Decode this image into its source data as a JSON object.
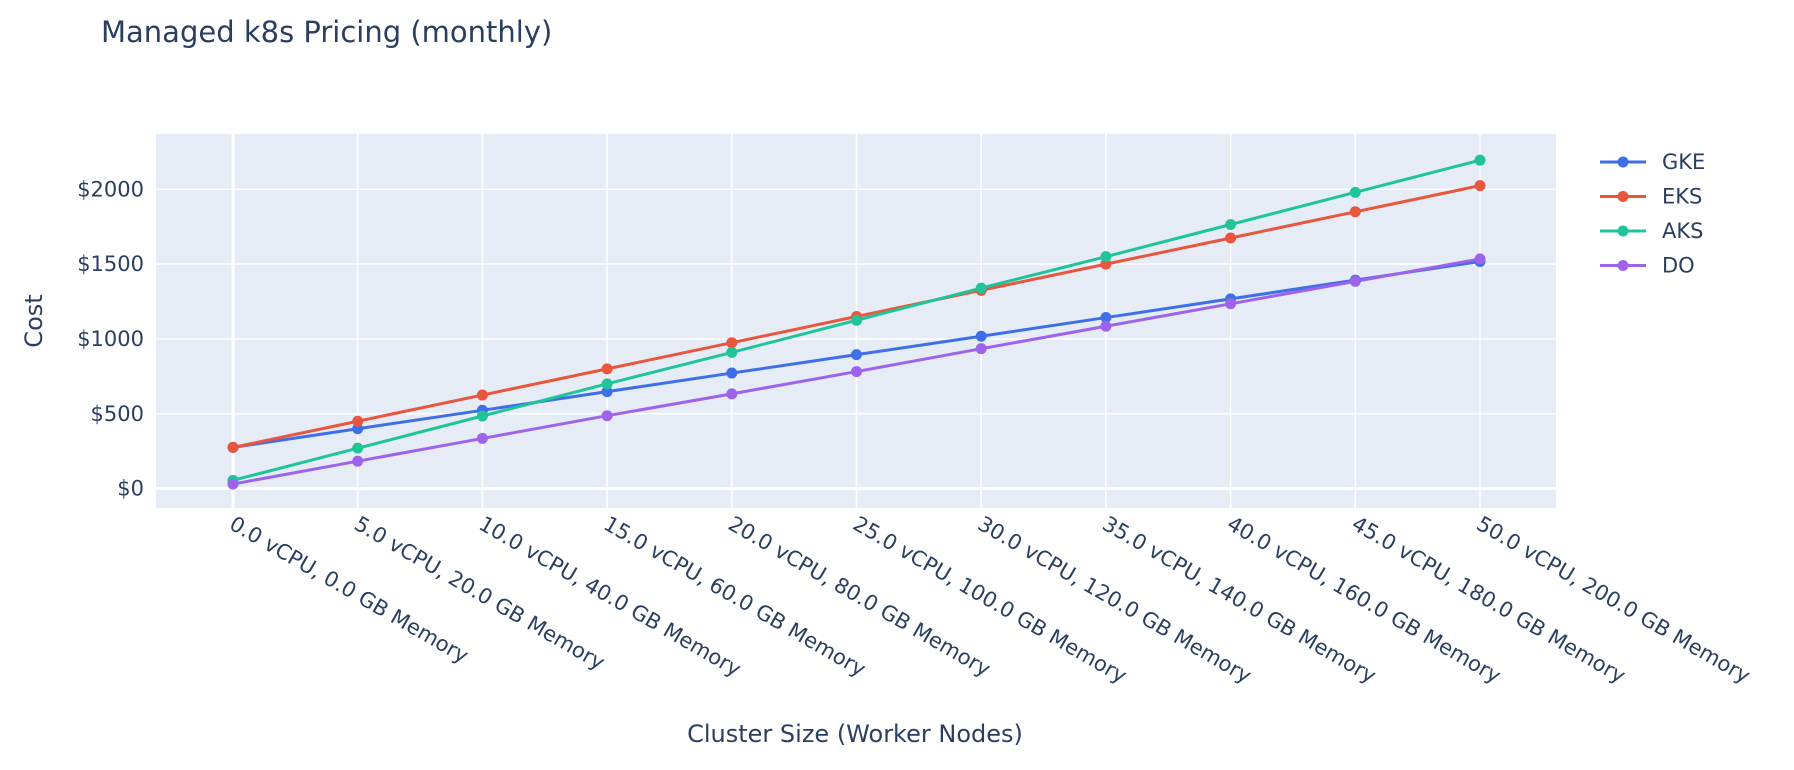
{
  "chart_data": {
    "type": "line",
    "title": "Managed k8s Pricing (monthly)",
    "xlabel": "Cluster Size (Worker Nodes)",
    "ylabel": "Cost",
    "categories": [
      "0.0 vCPU, 0.0 GB Memory",
      "5.0 vCPU, 20.0 GB Memory",
      "10.0 vCPU, 40.0 GB Memory",
      "15.0 vCPU, 60.0 GB Memory",
      "20.0 vCPU, 80.0 GB Memory",
      "25.0 vCPU, 100.0 GB Memory",
      "30.0 vCPU, 120.0 GB Memory",
      "35.0 vCPU, 140.0 GB Memory",
      "40.0 vCPU, 160.0 GB Memory",
      "45.0 vCPU, 180.0 GB Memory",
      "50.0 vCPU, 200.0 GB Memory"
    ],
    "yticks": [
      {
        "value": 0,
        "label": "$0"
      },
      {
        "value": 500,
        "label": "$500"
      },
      {
        "value": 1000,
        "label": "$1000"
      },
      {
        "value": 1500,
        "label": "$1500"
      },
      {
        "value": 2000,
        "label": "$2000"
      }
    ],
    "ylim": [
      -130,
      2370
    ],
    "grid": true,
    "legend_position": "top-right",
    "series": [
      {
        "name": "GKE",
        "color": "#3f6fe8",
        "values": [
          275,
          400,
          523,
          648,
          772,
          895,
          1018,
          1143,
          1268,
          1393,
          1518
        ]
      },
      {
        "name": "EKS",
        "color": "#e9553d",
        "values": [
          275,
          450,
          625,
          800,
          975,
          1150,
          1325,
          1500,
          1675,
          1850,
          2025
        ]
      },
      {
        "name": "AKS",
        "color": "#1fc499",
        "values": [
          55,
          270,
          485,
          700,
          910,
          1125,
          1340,
          1550,
          1765,
          1980,
          2195
        ]
      },
      {
        "name": "DO",
        "color": "#9d63ea",
        "values": [
          30,
          183,
          335,
          487,
          633,
          782,
          935,
          1085,
          1235,
          1385,
          1535
        ]
      }
    ]
  }
}
